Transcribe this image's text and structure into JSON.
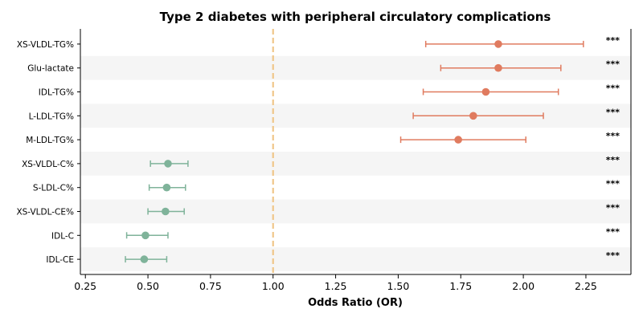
{
  "chart_data": {
    "type": "scatter",
    "subtype": "forest-plot",
    "title": "Type 2 diabetes with peripheral circulatory complications",
    "xlabel": "Odds Ratio (OR)",
    "ylabel": "",
    "xlim": [
      0.23,
      2.43
    ],
    "xticks": [
      0.25,
      0.5,
      0.75,
      1.0,
      1.25,
      1.5,
      1.75,
      2.0,
      2.25
    ],
    "xtick_labels": [
      "0.25",
      "0.50",
      "0.75",
      "1.00",
      "1.25",
      "1.50",
      "1.75",
      "2.00",
      "2.25"
    ],
    "reference_line": {
      "x": 1.0,
      "color": "#f0c78a",
      "style": "dashed"
    },
    "grid": false,
    "alternating_row_shading": true,
    "colors": {
      "risk": "#e07b5f",
      "protective": "#7fb39a",
      "shade": "#f5f5f5"
    },
    "rows": [
      {
        "label": "XS-VLDL-TG%",
        "or": 1.9,
        "ci_low": 1.61,
        "ci_high": 2.24,
        "sig": "***",
        "group": "risk"
      },
      {
        "label": "Glu-lactate",
        "or": 1.9,
        "ci_low": 1.67,
        "ci_high": 2.15,
        "sig": "***",
        "group": "risk"
      },
      {
        "label": "IDL-TG%",
        "or": 1.85,
        "ci_low": 1.6,
        "ci_high": 2.14,
        "sig": "***",
        "group": "risk"
      },
      {
        "label": "L-LDL-TG%",
        "or": 1.8,
        "ci_low": 1.56,
        "ci_high": 2.08,
        "sig": "***",
        "group": "risk"
      },
      {
        "label": "M-LDL-TG%",
        "or": 1.74,
        "ci_low": 1.51,
        "ci_high": 2.01,
        "sig": "***",
        "group": "risk"
      },
      {
        "label": "XS-VLDL-C%",
        "or": 0.58,
        "ci_low": 0.51,
        "ci_high": 0.66,
        "sig": "***",
        "group": "protective"
      },
      {
        "label": "S-LDL-C%",
        "or": 0.575,
        "ci_low": 0.505,
        "ci_high": 0.65,
        "sig": "***",
        "group": "protective"
      },
      {
        "label": "XS-VLDL-CE%",
        "or": 0.57,
        "ci_low": 0.5,
        "ci_high": 0.645,
        "sig": "***",
        "group": "protective"
      },
      {
        "label": "IDL-C",
        "or": 0.49,
        "ci_low": 0.415,
        "ci_high": 0.58,
        "sig": "***",
        "group": "protective"
      },
      {
        "label": "IDL-CE",
        "or": 0.485,
        "ci_low": 0.41,
        "ci_high": 0.575,
        "sig": "***",
        "group": "protective"
      }
    ]
  }
}
